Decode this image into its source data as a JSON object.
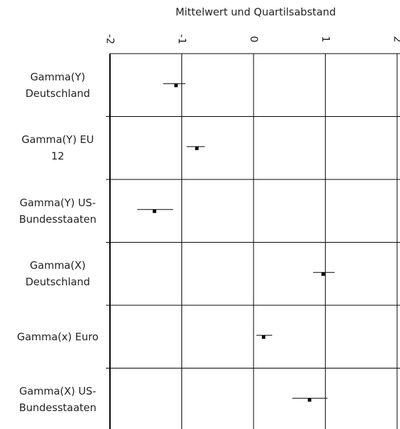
{
  "chart_data": {
    "type": "dot-range",
    "title": "Mittelwert und Quartilsabstand",
    "categories": [
      "Gamma(Y)\nDeutschland",
      "Gamma(Y) EU\n12",
      "Gamma(Y) US-\nBundesstaaten",
      "Gamma(X)\nDeutschland",
      "Gamma(x) Euro",
      "Gamma(X) US-\nBundesstaaten"
    ],
    "values": [
      -1.08,
      -0.79,
      -1.38,
      0.97,
      0.14,
      0.78
    ],
    "q1": [
      -1.26,
      -0.93,
      -1.62,
      0.83,
      0.04,
      0.54
    ],
    "q3": [
      -0.95,
      -0.68,
      -1.12,
      1.13,
      0.26,
      1.03
    ],
    "color": "#000000",
    "xlim": [
      -2,
      2.04
    ],
    "xticks": [
      -2,
      -1,
      0,
      1,
      2
    ],
    "grid": true
  }
}
